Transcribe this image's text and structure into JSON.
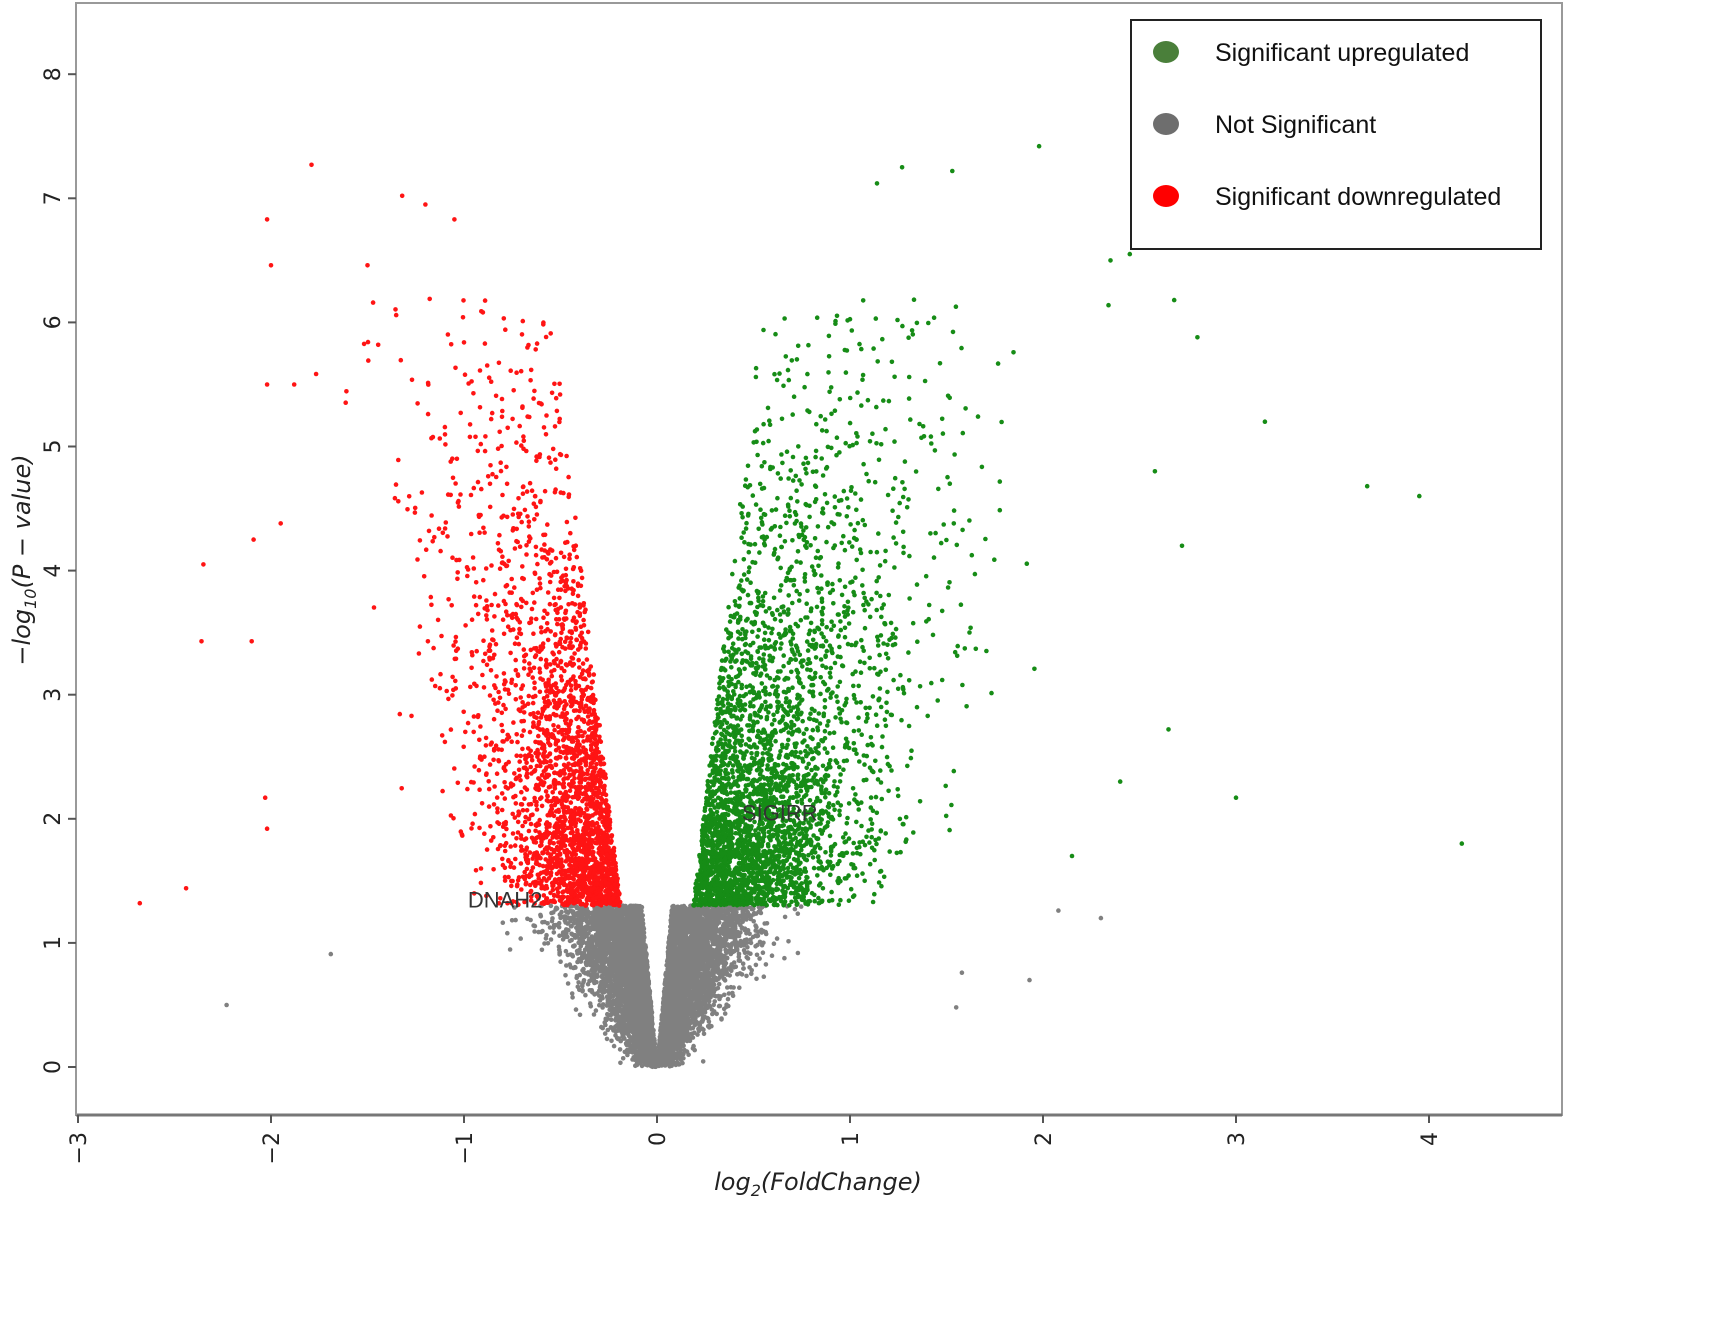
{
  "chart_data": {
    "type": "scatter",
    "title": "",
    "xlabel": "log2(FoldChange)",
    "ylabel": "-log10(P - value)",
    "xlim": [
      -3.05,
      4.7
    ],
    "ylim": [
      -0.4,
      8.55
    ],
    "xticks": [
      -3,
      -2,
      -1,
      0,
      1,
      2,
      3,
      4
    ],
    "yticks": [
      0,
      1,
      2,
      3,
      4,
      5,
      6,
      7,
      8
    ],
    "significance_threshold_y": 1.3,
    "grid": false,
    "legend_position": "top-right",
    "series": [
      {
        "name": "Significant upregulated",
        "color": "#168c16",
        "legend_color": "#4a7f3a",
        "count_approx": 3500,
        "side": 1,
        "spread": 0.42
      },
      {
        "name": "Not Significant",
        "color": "#808080",
        "legend_color": "#6e6e6e",
        "count_approx": 7000,
        "side": 0,
        "spread": 0.2
      },
      {
        "name": "Significant downregulated",
        "color": "#ff1414",
        "legend_color": "#ff0000",
        "count_approx": 2600,
        "side": -1,
        "spread": 0.3
      }
    ],
    "outliers": [
      {
        "series": 2,
        "x": -2.68,
        "y": 1.32
      },
      {
        "series": 2,
        "x": -2.44,
        "y": 1.44
      },
      {
        "series": 2,
        "x": -2.35,
        "y": 4.05
      },
      {
        "series": 2,
        "x": -2.36,
        "y": 3.43
      },
      {
        "series": 2,
        "x": -2.02,
        "y": 6.83
      },
      {
        "series": 2,
        "x": -2.0,
        "y": 6.46
      },
      {
        "series": 2,
        "x": -2.02,
        "y": 5.5
      },
      {
        "series": 2,
        "x": -1.79,
        "y": 7.27
      },
      {
        "series": 2,
        "x": -1.32,
        "y": 7.02
      },
      {
        "series": 2,
        "x": -1.2,
        "y": 6.95
      },
      {
        "series": 2,
        "x": -1.05,
        "y": 6.83
      },
      {
        "series": 2,
        "x": -2.09,
        "y": 4.25
      },
      {
        "series": 2,
        "x": -2.1,
        "y": 3.43
      },
      {
        "series": 2,
        "x": -2.03,
        "y": 2.17
      },
      {
        "series": 2,
        "x": -2.02,
        "y": 1.92
      },
      {
        "series": 2,
        "x": -1.95,
        "y": 4.38
      },
      {
        "series": 2,
        "x": -1.88,
        "y": 5.5
      },
      {
        "series": 2,
        "x": -1.5,
        "y": 6.46
      },
      {
        "series": 0,
        "x": 1.98,
        "y": 7.42
      },
      {
        "series": 0,
        "x": 1.27,
        "y": 7.25
      },
      {
        "series": 0,
        "x": 1.53,
        "y": 7.22
      },
      {
        "series": 0,
        "x": 1.14,
        "y": 7.12
      },
      {
        "series": 0,
        "x": 3.68,
        "y": 4.68
      },
      {
        "series": 0,
        "x": 3.95,
        "y": 4.6
      },
      {
        "series": 0,
        "x": 4.17,
        "y": 1.8
      },
      {
        "series": 0,
        "x": 3.0,
        "y": 2.17
      },
      {
        "series": 0,
        "x": 3.15,
        "y": 5.2
      },
      {
        "series": 0,
        "x": 2.65,
        "y": 2.72
      },
      {
        "series": 0,
        "x": 2.72,
        "y": 4.2
      },
      {
        "series": 0,
        "x": 2.68,
        "y": 6.18
      },
      {
        "series": 0,
        "x": 2.8,
        "y": 5.88
      },
      {
        "series": 0,
        "x": 2.45,
        "y": 6.55
      },
      {
        "series": 0,
        "x": 2.35,
        "y": 6.5
      },
      {
        "series": 0,
        "x": 2.58,
        "y": 4.8
      },
      {
        "series": 0,
        "x": 2.4,
        "y": 2.3
      },
      {
        "series": 0,
        "x": 2.15,
        "y": 1.7
      },
      {
        "series": 1,
        "x": -2.23,
        "y": 0.5
      },
      {
        "series": 1,
        "x": -1.69,
        "y": 0.91
      },
      {
        "series": 1,
        "x": 1.55,
        "y": 0.48
      },
      {
        "series": 1,
        "x": 1.93,
        "y": 0.7
      },
      {
        "series": 1,
        "x": 2.3,
        "y": 1.2
      },
      {
        "series": 1,
        "x": 2.08,
        "y": 1.26
      },
      {
        "series": 1,
        "x": 1.58,
        "y": 0.76
      }
    ],
    "annotations": [
      {
        "text": "SIGIRR",
        "x": 0.44,
        "y": 2.05
      },
      {
        "text": "DNAH2",
        "x": -0.98,
        "y": 1.35
      }
    ]
  }
}
